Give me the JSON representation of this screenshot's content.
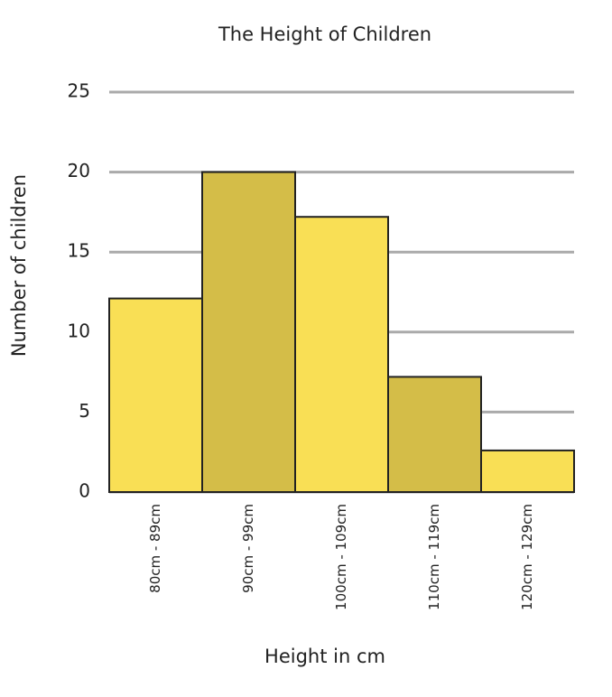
{
  "chart_data": {
    "type": "bar",
    "title": "The Height of Children",
    "x_label": "Height in cm",
    "y_label": "Number of children",
    "categories": [
      "80cm - 89cm",
      "90cm - 99cm",
      "100cm - 109cm",
      "110cm - 119cm",
      "120cm - 129cm"
    ],
    "values": [
      12.1,
      20,
      17.2,
      7.2,
      2.6
    ],
    "colors": [
      "#f9df55",
      "#d4bd48",
      "#f9df55",
      "#d4bd48",
      "#f9df55"
    ],
    "ylim": [
      0,
      25
    ],
    "yticks": [
      0,
      5,
      10,
      15,
      20,
      25
    ],
    "grid": true
  }
}
